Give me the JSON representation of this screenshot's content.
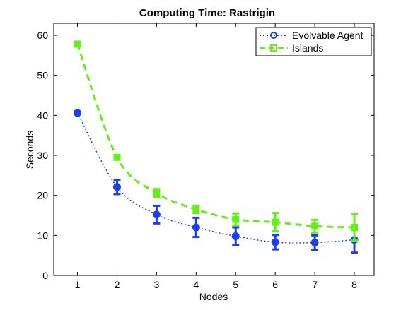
{
  "chart_data": {
    "type": "line",
    "title": "Computing Time: Rastrigin",
    "xlabel": "Nodes",
    "ylabel": "Seconds",
    "xlim": [
      0.4,
      8.5
    ],
    "ylim": [
      0,
      63
    ],
    "xticks": [
      1,
      2,
      3,
      4,
      5,
      6,
      7,
      8
    ],
    "yticks": [
      0,
      10,
      20,
      30,
      40,
      50,
      60
    ],
    "grid": false,
    "legend_position": "top-right",
    "series": [
      {
        "name": "Evolvable Agent",
        "color": "#1f3ee6",
        "line_style": "dotted",
        "marker": "circle",
        "x": [
          1,
          2,
          3,
          4,
          5,
          6,
          7,
          8
        ],
        "y": [
          40.6,
          22.1,
          15.2,
          12.0,
          9.8,
          8.3,
          8.2,
          8.9
        ],
        "error": [
          0.3,
          1.8,
          2.2,
          2.4,
          2.2,
          1.8,
          1.8,
          3.2
        ]
      },
      {
        "name": "Islands",
        "color": "#66ee1a",
        "line_style": "dashed",
        "marker": "square",
        "x": [
          1,
          2,
          3,
          4,
          5,
          6,
          7,
          8
        ],
        "y": [
          57.8,
          29.5,
          20.6,
          16.5,
          14.0,
          13.3,
          12.3,
          12.0
        ],
        "error": [
          0.5,
          0.4,
          1.0,
          0.9,
          1.5,
          2.3,
          1.6,
          3.3
        ]
      }
    ]
  }
}
